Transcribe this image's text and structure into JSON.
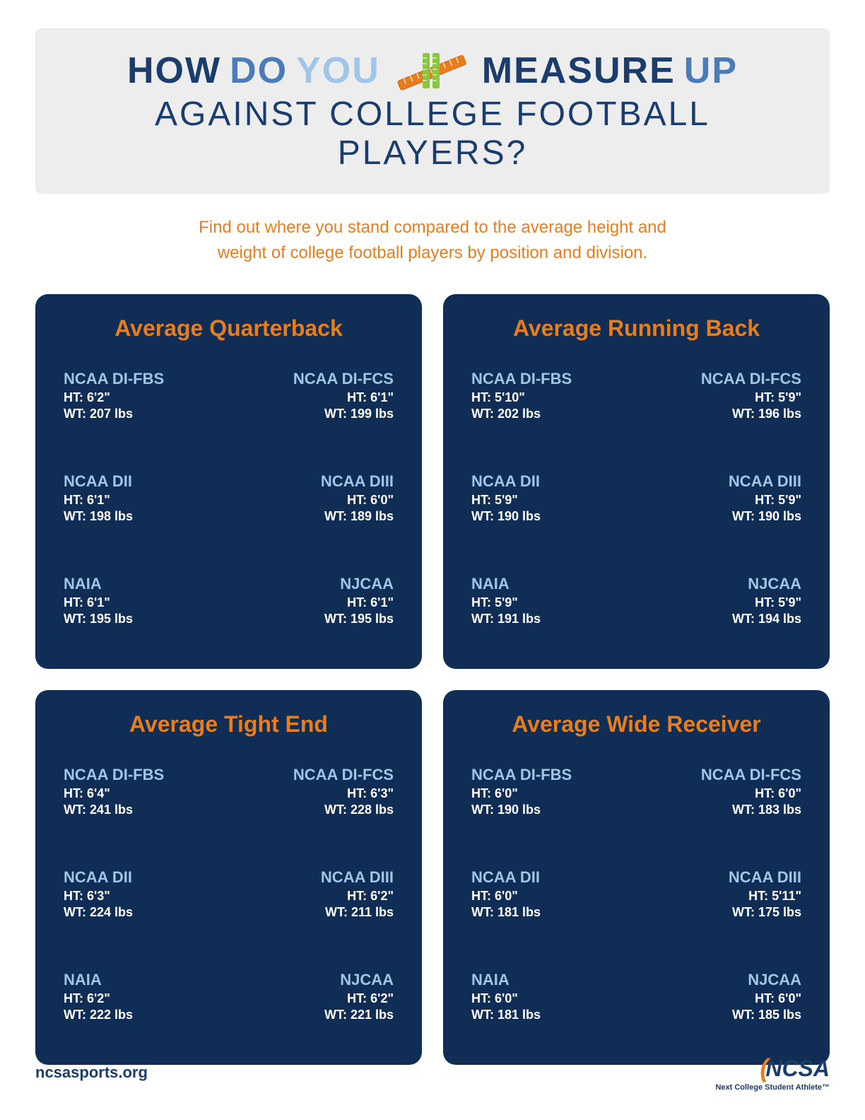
{
  "title": {
    "line1_a": "HOW",
    "line1_b": "DO",
    "line1_c": "YOU",
    "line1_d": "MEASURE",
    "line1_e": "UP",
    "line2": "AGAINST COLLEGE FOOTBALL PLAYERS?"
  },
  "subtitle_l1": "Find out where you stand compared to the average height and",
  "subtitle_l2": "weight of college football players by position and division.",
  "divisions": [
    "NCAA DI-FBS",
    "NCAA DI-FCS",
    "NCAA DII",
    "NCAA DIII",
    "NAIA",
    "NJCAA"
  ],
  "colors": {
    "card_bg": "#102e55",
    "accent": "#e87d1e",
    "division_text": "#9fc6e8",
    "silhouette_light": "#b8d4ea",
    "silhouette_mid": "#6da2d4",
    "silhouette_dark": "#3a77c2"
  },
  "cards": [
    {
      "title": "Average Quarterback",
      "pose": "qb",
      "stats": [
        {
          "div": "NCAA DI-FBS",
          "ht": "6'2\"",
          "wt": "207 lbs"
        },
        {
          "div": "NCAA DI-FCS",
          "ht": "6'1\"",
          "wt": "199 lbs"
        },
        {
          "div": "NCAA DII",
          "ht": "6'1\"",
          "wt": "198 lbs"
        },
        {
          "div": "NCAA DIII",
          "ht": "6'0\"",
          "wt": "189 lbs"
        },
        {
          "div": "NAIA",
          "ht": "6'1\"",
          "wt": "195 lbs"
        },
        {
          "div": "NJCAA",
          "ht": "6'1\"",
          "wt": "195 lbs"
        }
      ]
    },
    {
      "title": "Average Running Back",
      "pose": "rb",
      "stats": [
        {
          "div": "NCAA DI-FBS",
          "ht": "5'10\"",
          "wt": "202 lbs"
        },
        {
          "div": "NCAA DI-FCS",
          "ht": "5'9\"",
          "wt": "196 lbs"
        },
        {
          "div": "NCAA DII",
          "ht": "5'9\"",
          "wt": "190 lbs"
        },
        {
          "div": "NCAA DIII",
          "ht": "5'9\"",
          "wt": "190 lbs"
        },
        {
          "div": "NAIA",
          "ht": "5'9\"",
          "wt": "191 lbs"
        },
        {
          "div": "NJCAA",
          "ht": "5'9\"",
          "wt": "194 lbs"
        }
      ]
    },
    {
      "title": "Average Tight End",
      "pose": "te",
      "stats": [
        {
          "div": "NCAA DI-FBS",
          "ht": "6'4\"",
          "wt": "241 lbs"
        },
        {
          "div": "NCAA DI-FCS",
          "ht": "6'3\"",
          "wt": "228 lbs"
        },
        {
          "div": "NCAA DII",
          "ht": "6'3\"",
          "wt": "224 lbs"
        },
        {
          "div": "NCAA DIII",
          "ht": "6'2\"",
          "wt": "211 lbs"
        },
        {
          "div": "NAIA",
          "ht": "6'2\"",
          "wt": "222 lbs"
        },
        {
          "div": "NJCAA",
          "ht": "6'2\"",
          "wt": "221 lbs"
        }
      ]
    },
    {
      "title": "Average Wide Receiver",
      "pose": "wr",
      "stats": [
        {
          "div": "NCAA DI-FBS",
          "ht": "6'0\"",
          "wt": "190 lbs"
        },
        {
          "div": "NCAA DI-FCS",
          "ht": "6'0\"",
          "wt": "183 lbs"
        },
        {
          "div": "NCAA DII",
          "ht": "6'0\"",
          "wt": "181 lbs"
        },
        {
          "div": "NCAA DIII",
          "ht": "5'11\"",
          "wt": "175 lbs"
        },
        {
          "div": "NAIA",
          "ht": "6'0\"",
          "wt": "181 lbs"
        },
        {
          "div": "NJCAA",
          "ht": "6'0\"",
          "wt": "185 lbs"
        }
      ]
    }
  ],
  "footer": {
    "url": "ncsasports.org",
    "logo_text": "NCSA",
    "logo_sub": "Next College Student Athlete™"
  }
}
